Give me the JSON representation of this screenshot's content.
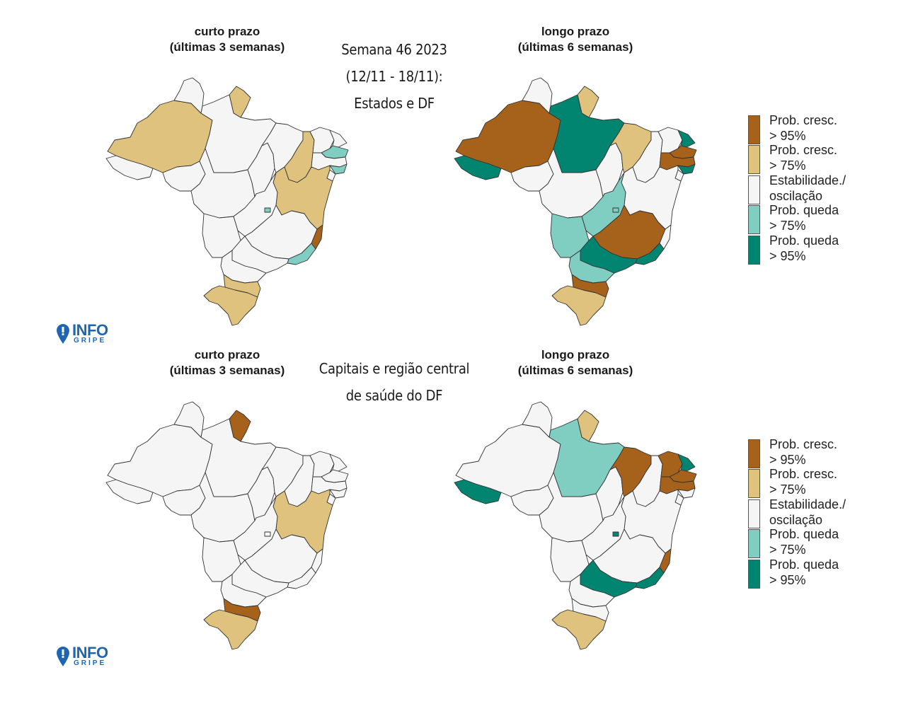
{
  "header": {
    "week_line1": "Semana 46 2023",
    "week_line2": "(12/11 - 18/11):",
    "week_line3": "Estados e DF",
    "section2_line1": "Capitais e região central",
    "section2_line2": "de saúde do DF"
  },
  "panels": [
    {
      "title_line1": "curto prazo",
      "title_line2": "(últimas 3 semanas)"
    },
    {
      "title_line1": "longo prazo",
      "title_line2": "(últimas 6 semanas)"
    },
    {
      "title_line1": "curto prazo",
      "title_line2": "(últimas 3 semanas)"
    },
    {
      "title_line1": "longo prazo",
      "title_line2": "(últimas 6 semanas)"
    }
  ],
  "legend": {
    "items": [
      {
        "line1": "Prob. cresc.",
        "line2": "> 95%",
        "color": "#a6611a"
      },
      {
        "line1": "Prob. cresc.",
        "line2": "> 75%",
        "color": "#dfc27d"
      },
      {
        "line1": "Estabilidade./",
        "line2": "oscilação",
        "color": "#f5f5f5"
      },
      {
        "line1": "Prob. queda",
        "line2": "> 75%",
        "color": "#80cdc1"
      },
      {
        "line1": "Prob. queda",
        "line2": "> 95%",
        "color": "#018571"
      }
    ]
  },
  "logo": {
    "text_main": "INFO",
    "text_sub": "GRIPE"
  },
  "colors": {
    "grow95": "#a6611a",
    "grow75": "#dfc27d",
    "stable": "#f5f5f5",
    "fall75": "#80cdc1",
    "fall95": "#018571"
  },
  "map_data": {
    "states_short": {
      "AC": "stable",
      "AM": "grow75",
      "RR": "stable",
      "AP": "grow75",
      "PA": "stable",
      "TO": "stable",
      "MA": "stable",
      "PI": "grow75",
      "CE": "stable",
      "RN": "stable",
      "PB": "fall75",
      "PE": "stable",
      "AL": "fall75",
      "SE": "stable",
      "BA": "grow75",
      "RO": "stable",
      "MT": "stable",
      "MS": "stable",
      "GO": "stable",
      "DF": "fall75",
      "MG": "stable",
      "ES": "grow95",
      "RJ": "fall75",
      "SP": "stable",
      "PR": "stable",
      "SC": "grow75",
      "RS": "grow75"
    },
    "states_long": {
      "AC": "fall95",
      "AM": "grow95",
      "RR": "stable",
      "AP": "grow75",
      "PA": "fall95",
      "TO": "stable",
      "MA": "grow75",
      "PI": "stable",
      "CE": "stable",
      "RN": "fall95",
      "PB": "grow95",
      "PE": "grow95",
      "AL": "fall95",
      "SE": "stable",
      "BA": "stable",
      "RO": "stable",
      "MT": "stable",
      "MS": "fall75",
      "GO": "fall75",
      "DF": "fall75",
      "MG": "grow95",
      "ES": "stable",
      "RJ": "fall95",
      "SP": "fall95",
      "PR": "fall75",
      "SC": "grow95",
      "RS": "grow75"
    },
    "capitals_short": {
      "AC": "stable",
      "AM": "stable",
      "RR": "stable",
      "AP": "grow95",
      "PA": "stable",
      "TO": "stable",
      "MA": "stable",
      "PI": "stable",
      "CE": "stable",
      "RN": "stable",
      "PB": "stable",
      "PE": "stable",
      "AL": "stable",
      "SE": "stable",
      "BA": "grow75",
      "RO": "stable",
      "MT": "stable",
      "MS": "stable",
      "GO": "stable",
      "DF": "stable",
      "MG": "stable",
      "ES": "stable",
      "RJ": "stable",
      "SP": "stable",
      "PR": "stable",
      "SC": "grow95",
      "RS": "grow75"
    },
    "capitals_long": {
      "AC": "fall95",
      "AM": "stable",
      "RR": "stable",
      "AP": "grow75",
      "PA": "fall75",
      "TO": "stable",
      "MA": "grow95",
      "PI": "stable",
      "CE": "grow95",
      "RN": "fall95",
      "PB": "grow95",
      "PE": "grow95",
      "AL": "stable",
      "SE": "stable",
      "BA": "stable",
      "RO": "stable",
      "MT": "stable",
      "MS": "stable",
      "GO": "stable",
      "DF": "fall95",
      "MG": "stable",
      "ES": "grow95",
      "RJ": "fall95",
      "SP": "fall95",
      "PR": "stable",
      "SC": "stable",
      "RS": "grow75"
    }
  }
}
